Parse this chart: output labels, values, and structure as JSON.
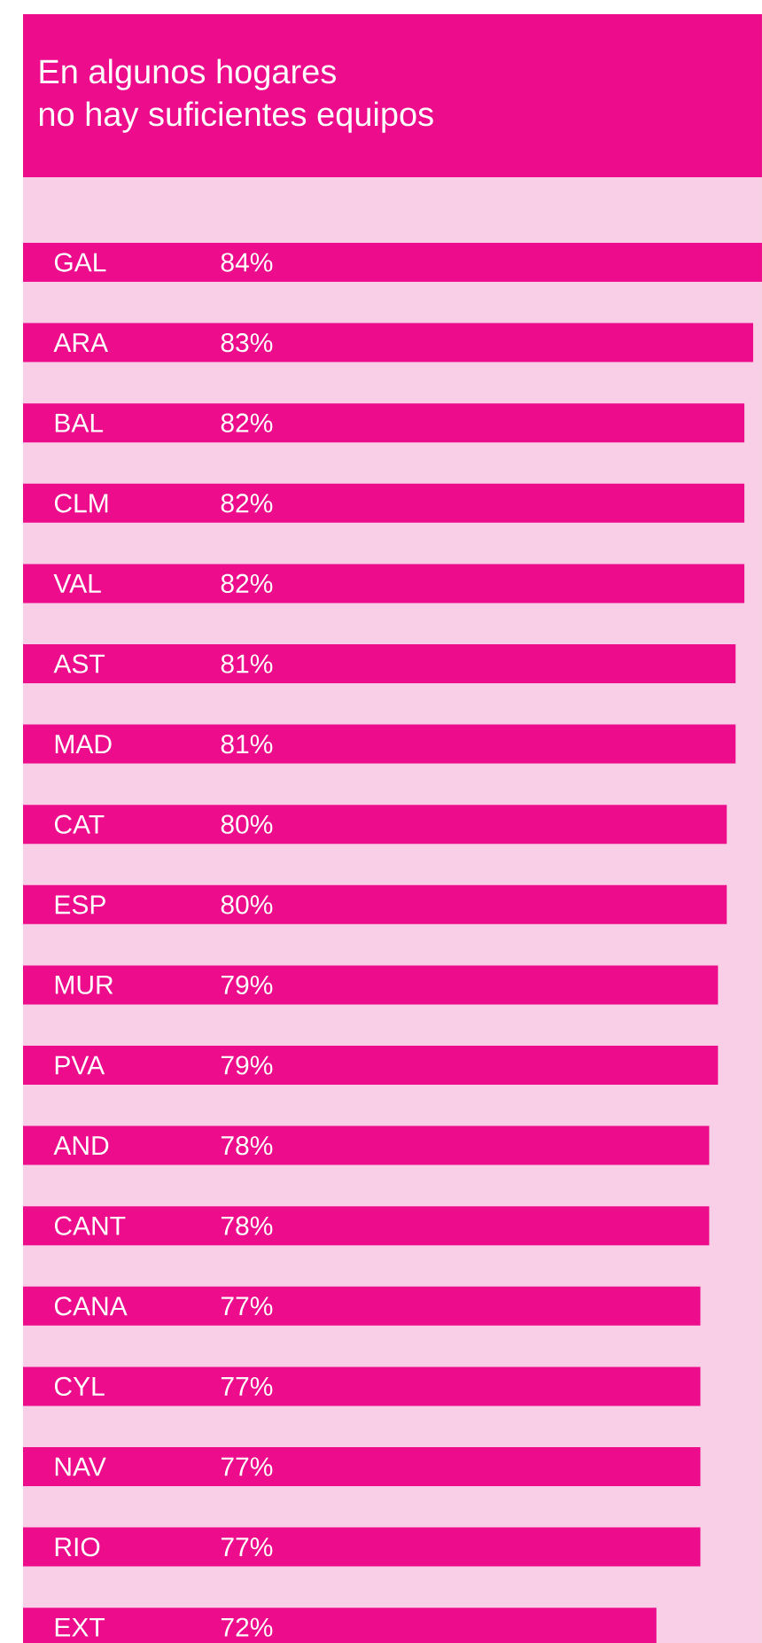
{
  "chart_data": {
    "type": "bar",
    "orientation": "horizontal",
    "title": "En algunos hogares\nno hay suficientes equipos",
    "categories": [
      "GAL",
      "ARA",
      "BAL",
      "CLM",
      "VAL",
      "AST",
      "MAD",
      "CAT",
      "ESP",
      "MUR",
      "PVA",
      "AND",
      "CANT",
      "CANA",
      "CYL",
      "NAV",
      "RIO",
      "EXT"
    ],
    "series": [
      {
        "color": "#ec0c8c",
        "values": [
          84,
          83,
          82,
          82,
          82,
          81,
          81,
          80,
          80,
          79,
          79,
          78,
          78,
          77,
          77,
          77,
          77,
          72
        ],
        "value_labels": [
          "84%",
          "83%",
          "82%",
          "82%",
          "82%",
          "81%",
          "81%",
          "80%",
          "80%",
          "79%",
          "79%",
          "78%",
          "78%",
          "77%",
          "77%",
          "77%",
          "77%",
          "72%"
        ]
      }
    ]
  }
}
